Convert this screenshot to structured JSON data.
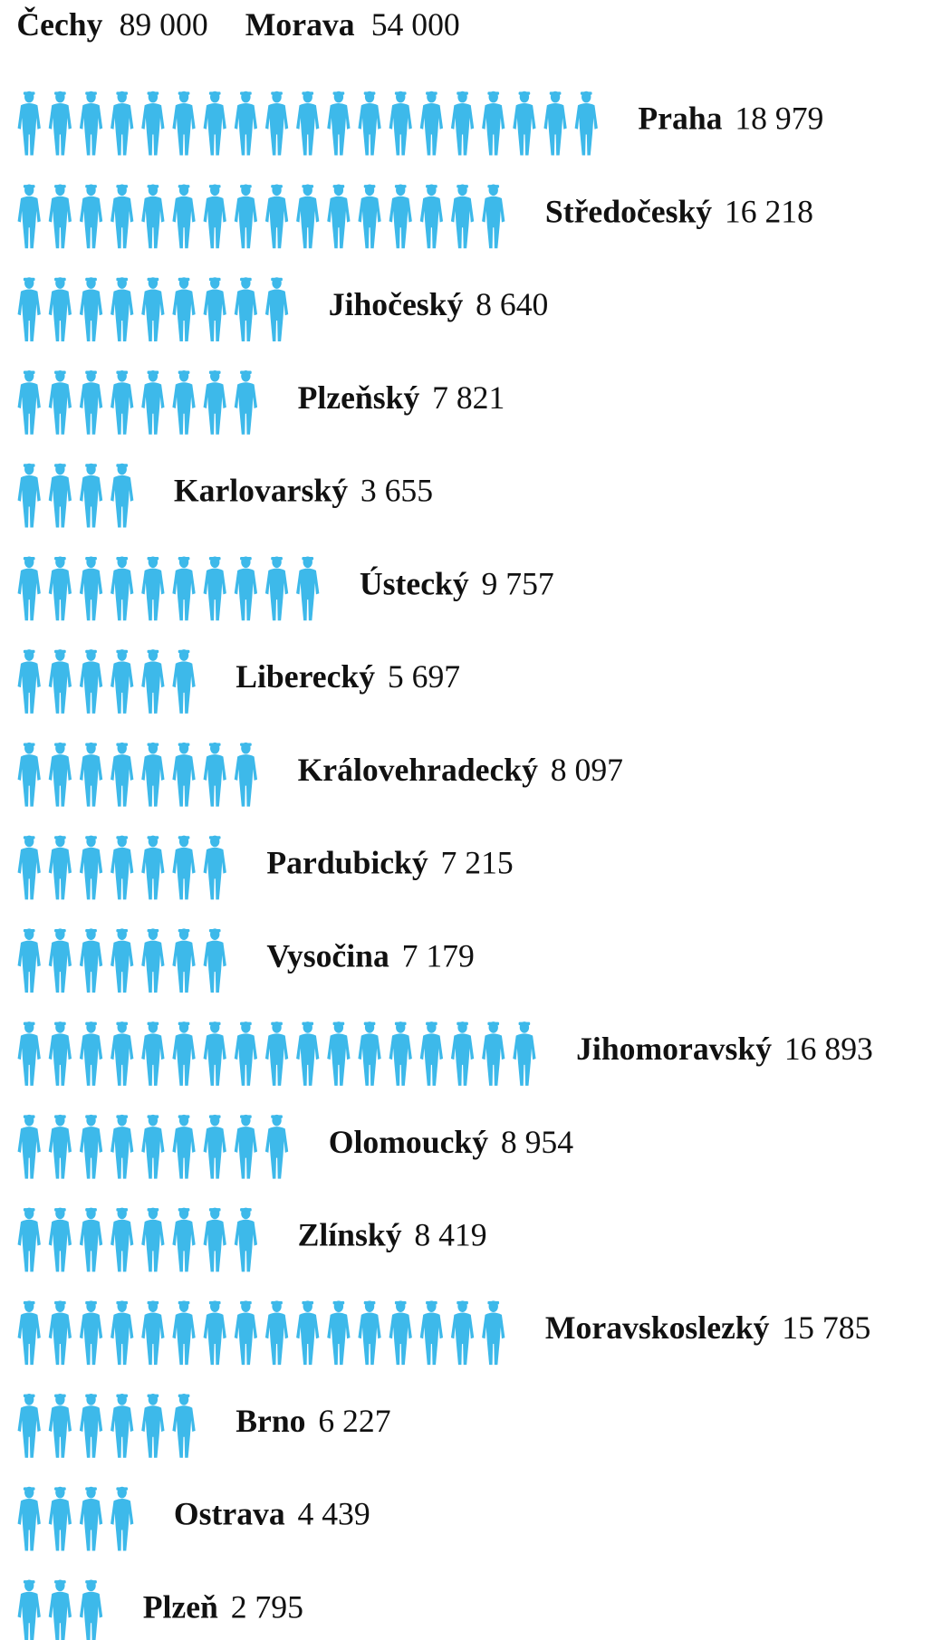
{
  "chart_data": {
    "type": "pictogram",
    "color": "#3db9ea",
    "unit": 1000,
    "totals": [
      {
        "name": "Čechy",
        "value": 89000,
        "value_label": "89 000"
      },
      {
        "name": "Morava",
        "value": 54000,
        "value_label": "54 000"
      }
    ],
    "categories": [
      "Praha",
      "Středočeský",
      "Jihočeský",
      "Plzeňský",
      "Karlovarský",
      "Ústecký",
      "Liberecký",
      "Královehradecký",
      "Pardubický",
      "Vysočina",
      "Jihomoravský",
      "Olomoucký",
      "Zlínský",
      "Moravskoslezký",
      "Brno",
      "Ostrava",
      "Plzeň"
    ],
    "values": [
      18979,
      16218,
      8640,
      7821,
      3655,
      9757,
      5697,
      8097,
      7215,
      7179,
      16893,
      8954,
      8419,
      15785,
      6227,
      4439,
      2795
    ],
    "value_labels": [
      "18 979",
      "16 218",
      "8 640",
      "7 821",
      "3 655",
      "9 757",
      "5 697",
      "8 097",
      "7 215",
      "7 179",
      "16 893",
      "8 954",
      "8 419",
      "15 785",
      "6 227",
      "4 439",
      "2 795"
    ]
  }
}
